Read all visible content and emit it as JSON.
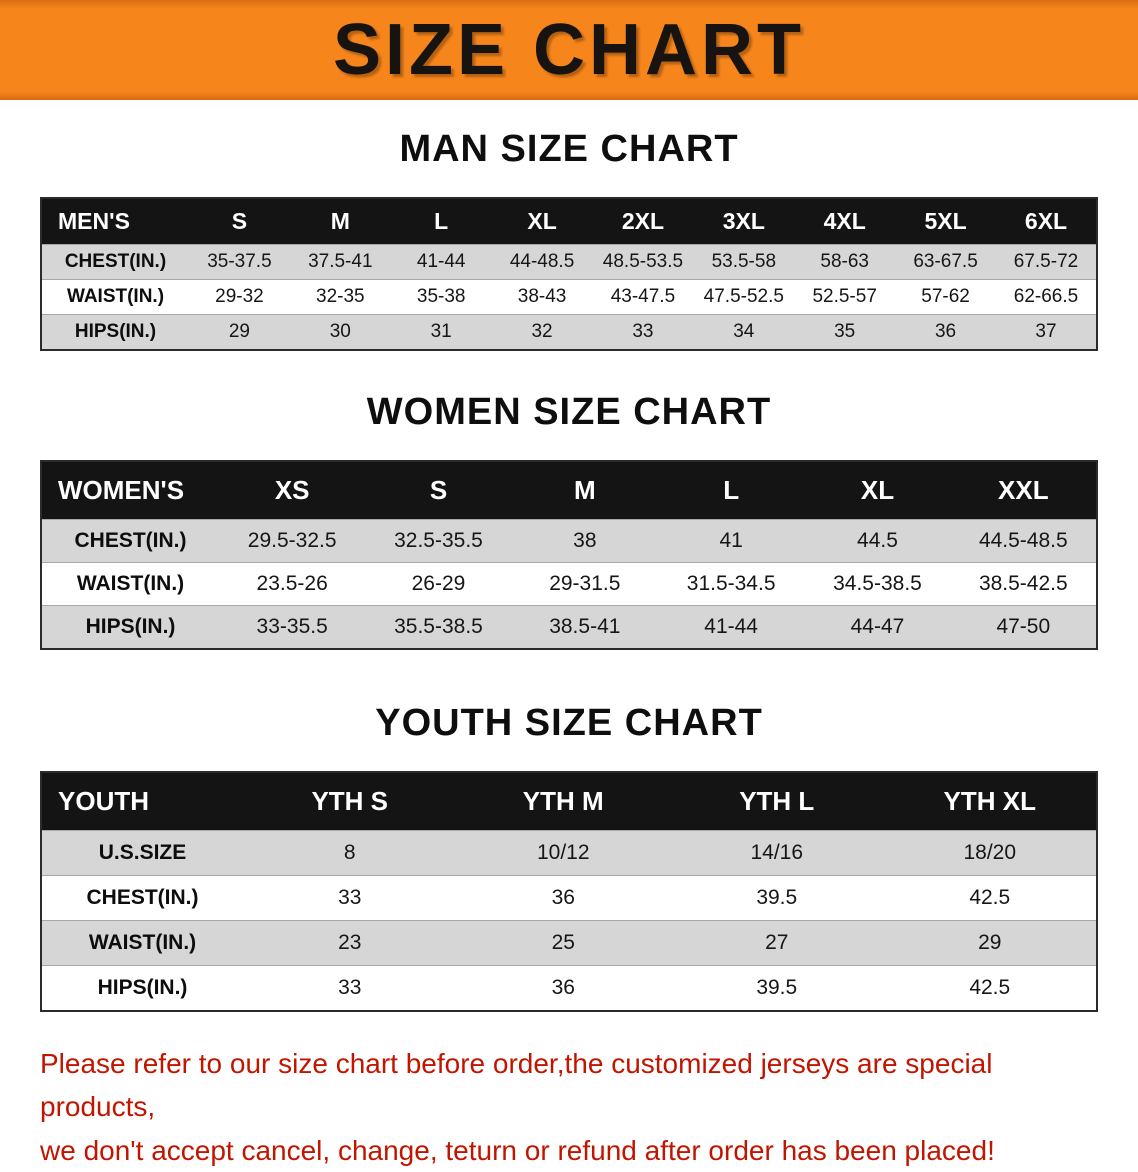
{
  "banner": {
    "title": "SIZE CHART"
  },
  "sections": [
    {
      "title": "MAN SIZE CHART",
      "header": [
        "MEN'S",
        "S",
        "M",
        "L",
        "XL",
        "2XL",
        "3XL",
        "4XL",
        "5XL",
        "6XL"
      ],
      "rows": [
        [
          "CHEST(IN.)",
          "35-37.5",
          "37.5-41",
          "41-44",
          "44-48.5",
          "48.5-53.5",
          "53.5-58",
          "58-63",
          "63-67.5",
          "67.5-72"
        ],
        [
          "WAIST(IN.)",
          "29-32",
          "32-35",
          "35-38",
          "38-43",
          "43-47.5",
          "47.5-52.5",
          "52.5-57",
          "57-62",
          "62-66.5"
        ],
        [
          "HIPS(IN.)",
          "29",
          "30",
          "31",
          "32",
          "33",
          "34",
          "35",
          "36",
          "37"
        ]
      ]
    },
    {
      "title": "WOMEN SIZE CHART",
      "header": [
        "WOMEN'S",
        "XS",
        "S",
        "M",
        "L",
        "XL",
        "XXL"
      ],
      "rows": [
        [
          "CHEST(IN.)",
          "29.5-32.5",
          "32.5-35.5",
          "38",
          "41",
          "44.5",
          "44.5-48.5"
        ],
        [
          "WAIST(IN.)",
          "23.5-26",
          "26-29",
          "29-31.5",
          "31.5-34.5",
          "34.5-38.5",
          "38.5-42.5"
        ],
        [
          "HIPS(IN.)",
          "33-35.5",
          "35.5-38.5",
          "38.5-41",
          "41-44",
          "44-47",
          "47-50"
        ]
      ]
    },
    {
      "title": "YOUTH SIZE CHART",
      "header": [
        "YOUTH",
        "YTH S",
        "YTH M",
        "YTH L",
        "YTH XL"
      ],
      "rows": [
        [
          "U.S.SIZE",
          "8",
          "10/12",
          "14/16",
          "18/20"
        ],
        [
          "CHEST(IN.)",
          "33",
          "36",
          "39.5",
          "42.5"
        ],
        [
          "WAIST(IN.)",
          "23",
          "25",
          "27",
          "29"
        ],
        [
          "HIPS(IN.)",
          "33",
          "36",
          "39.5",
          "42.5"
        ]
      ]
    }
  ],
  "footer": {
    "line1": "Please refer to our size chart before order,the customized jerseys are special products,",
    "line2": "we don't accept cancel, change, teturn or refund after order has been placed!"
  },
  "colors": {
    "banner_bg": "#f6861c",
    "table_header_bg": "#141414",
    "row_alt_bg": "#d6d6d6",
    "footer_text": "#c21500"
  }
}
